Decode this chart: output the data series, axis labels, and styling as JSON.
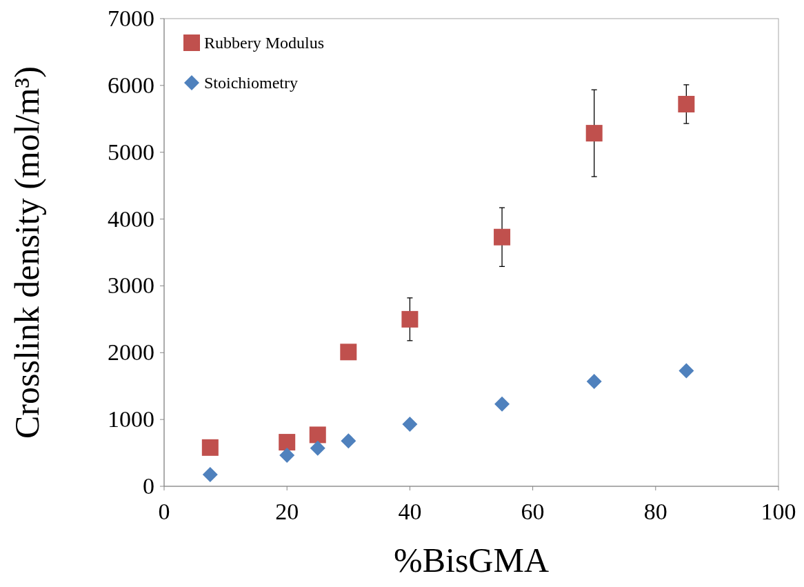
{
  "chart_data": {
    "type": "scatter",
    "xlabel": "%BisGMA",
    "ylabel": "Crosslink density (mol/m³)",
    "xlim": [
      0,
      100
    ],
    "xticks": [
      0,
      20,
      40,
      60,
      80,
      100
    ],
    "ylim": [
      0,
      7000
    ],
    "yticks": [
      0,
      1000,
      2000,
      3000,
      4000,
      5000,
      6000,
      7000
    ],
    "grid": false,
    "legend": "top left",
    "series": [
      {
        "name": "Rubbery Modulus",
        "color": "#c0504d",
        "marker": "square",
        "x": [
          7.5,
          20,
          25,
          30,
          40,
          55,
          70,
          85
        ],
        "values": [
          580,
          660,
          770,
          2010,
          2500,
          3730,
          5285,
          5720
        ],
        "errors": [
          null,
          null,
          null,
          null,
          320,
          440,
          650,
          290
        ]
      },
      {
        "name": "Stoichiometry",
        "color": "#4f81bd",
        "marker": "diamond",
        "x": [
          7.5,
          20,
          25,
          30,
          40,
          55,
          70,
          85
        ],
        "values": [
          175,
          465,
          570,
          680,
          930,
          1230,
          1570,
          1730
        ]
      }
    ]
  }
}
